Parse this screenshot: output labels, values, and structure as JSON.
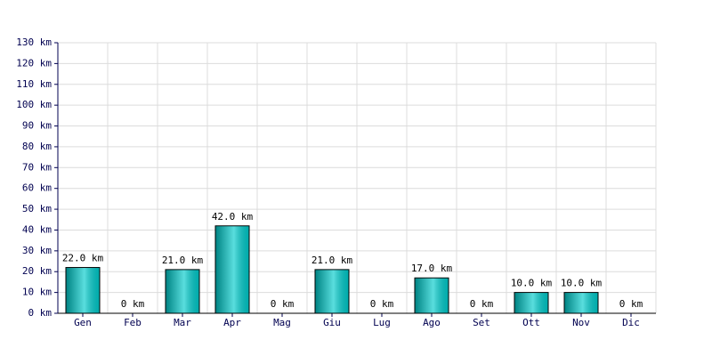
{
  "chart_data": {
    "type": "bar",
    "categories": [
      "Gen",
      "Feb",
      "Mar",
      "Apr",
      "Mag",
      "Giu",
      "Lug",
      "Ago",
      "Set",
      "Ott",
      "Nov",
      "Dic"
    ],
    "values": [
      22,
      0,
      21,
      42,
      0,
      21,
      0,
      17,
      0,
      10,
      10,
      0
    ],
    "value_labels": [
      "22.0 km",
      "0 km",
      "21.0 km",
      "42.0 km",
      "0 km",
      "21.0 km",
      "0 km",
      "17.0 km",
      "0 km",
      "10.0 km",
      "10.0 km",
      "0 km"
    ],
    "color": "#00cccc",
    "ylim": [
      0,
      130
    ],
    "yticks": [
      {
        "value": 0,
        "label": "0 km"
      },
      {
        "value": 10,
        "label": "10 km"
      },
      {
        "value": 20,
        "label": "20 km"
      },
      {
        "value": 30,
        "label": "30 km"
      },
      {
        "value": 40,
        "label": "40 km"
      },
      {
        "value": 50,
        "label": "50 km"
      },
      {
        "value": 60,
        "label": "60 km"
      },
      {
        "value": 70,
        "label": "70 km"
      },
      {
        "value": 80,
        "label": "80 km"
      },
      {
        "value": 90,
        "label": "90 km"
      },
      {
        "value": 100,
        "label": "100 km"
      },
      {
        "value": 110,
        "label": "110 km"
      },
      {
        "value": 120,
        "label": "120 km"
      },
      {
        "value": 130,
        "label": "130 km"
      }
    ],
    "grid": true
  }
}
